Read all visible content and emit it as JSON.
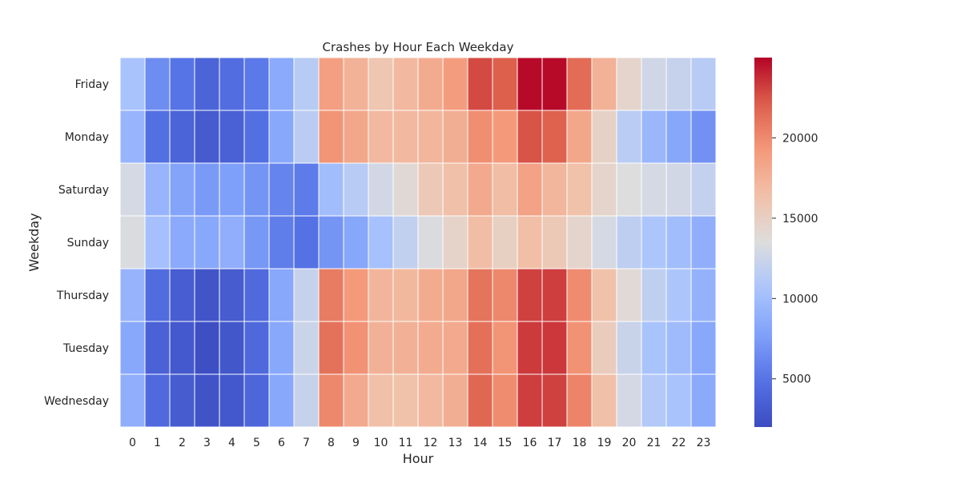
{
  "chart_data": {
    "type": "heatmap",
    "title": "Crashes by Hour Each Weekday",
    "xlabel": "Hour",
    "ylabel": "Weekday",
    "x": [
      "0",
      "1",
      "2",
      "3",
      "4",
      "5",
      "6",
      "7",
      "8",
      "9",
      "10",
      "11",
      "12",
      "13",
      "14",
      "15",
      "16",
      "17",
      "18",
      "19",
      "20",
      "21",
      "22",
      "23"
    ],
    "y": [
      "Friday",
      "Monday",
      "Saturday",
      "Sunday",
      "Thursday",
      "Tuesday",
      "Wednesday"
    ],
    "values": [
      [
        10500,
        6500,
        5000,
        3800,
        4500,
        5300,
        8500,
        11300,
        18800,
        17500,
        16000,
        17000,
        18000,
        19000,
        22800,
        22100,
        24800,
        24800,
        21500,
        17500,
        14500,
        12700,
        12200,
        11300
      ],
      [
        9300,
        4700,
        3800,
        3100,
        3600,
        4700,
        8300,
        11500,
        19500,
        18300,
        17000,
        17000,
        17200,
        17800,
        19800,
        19200,
        22500,
        22000,
        18300,
        14800,
        11500,
        9500,
        8200,
        6800
      ],
      [
        13000,
        9300,
        8000,
        7300,
        7700,
        7000,
        6000,
        5400,
        10000,
        11300,
        12800,
        14000,
        15700,
        16500,
        18100,
        16700,
        18600,
        17200,
        16400,
        14500,
        13500,
        13000,
        12800,
        12000
      ],
      [
        13300,
        10200,
        8500,
        8300,
        8800,
        7200,
        5600,
        4900,
        7000,
        8200,
        10300,
        11900,
        13300,
        14700,
        16700,
        15000,
        16600,
        15700,
        14500,
        13000,
        11700,
        10700,
        10000,
        8800
      ],
      [
        9200,
        4400,
        3300,
        2700,
        3200,
        4300,
        8300,
        12200,
        20700,
        19200,
        17300,
        17100,
        18000,
        18300,
        21100,
        20100,
        23100,
        23200,
        19900,
        16400,
        13900,
        11800,
        10700,
        9100
      ],
      [
        8300,
        3700,
        3000,
        2200,
        2800,
        4200,
        8300,
        12400,
        21200,
        19600,
        17600,
        17600,
        18000,
        18100,
        21300,
        19500,
        23300,
        23400,
        19600,
        15300,
        12300,
        10500,
        9800,
        8300
      ],
      [
        8800,
        4300,
        3200,
        2600,
        2900,
        4000,
        8300,
        12200,
        20100,
        18100,
        16500,
        16400,
        17000,
        17800,
        21700,
        19900,
        23200,
        23100,
        20300,
        16500,
        12900,
        11100,
        10500,
        8500
      ]
    ],
    "colormap": "coolwarm",
    "vmin": 2000,
    "vmax": 25000,
    "colorbar_ticks": [
      5000,
      10000,
      15000,
      20000
    ],
    "grid": true,
    "colorbar_position": "right"
  }
}
